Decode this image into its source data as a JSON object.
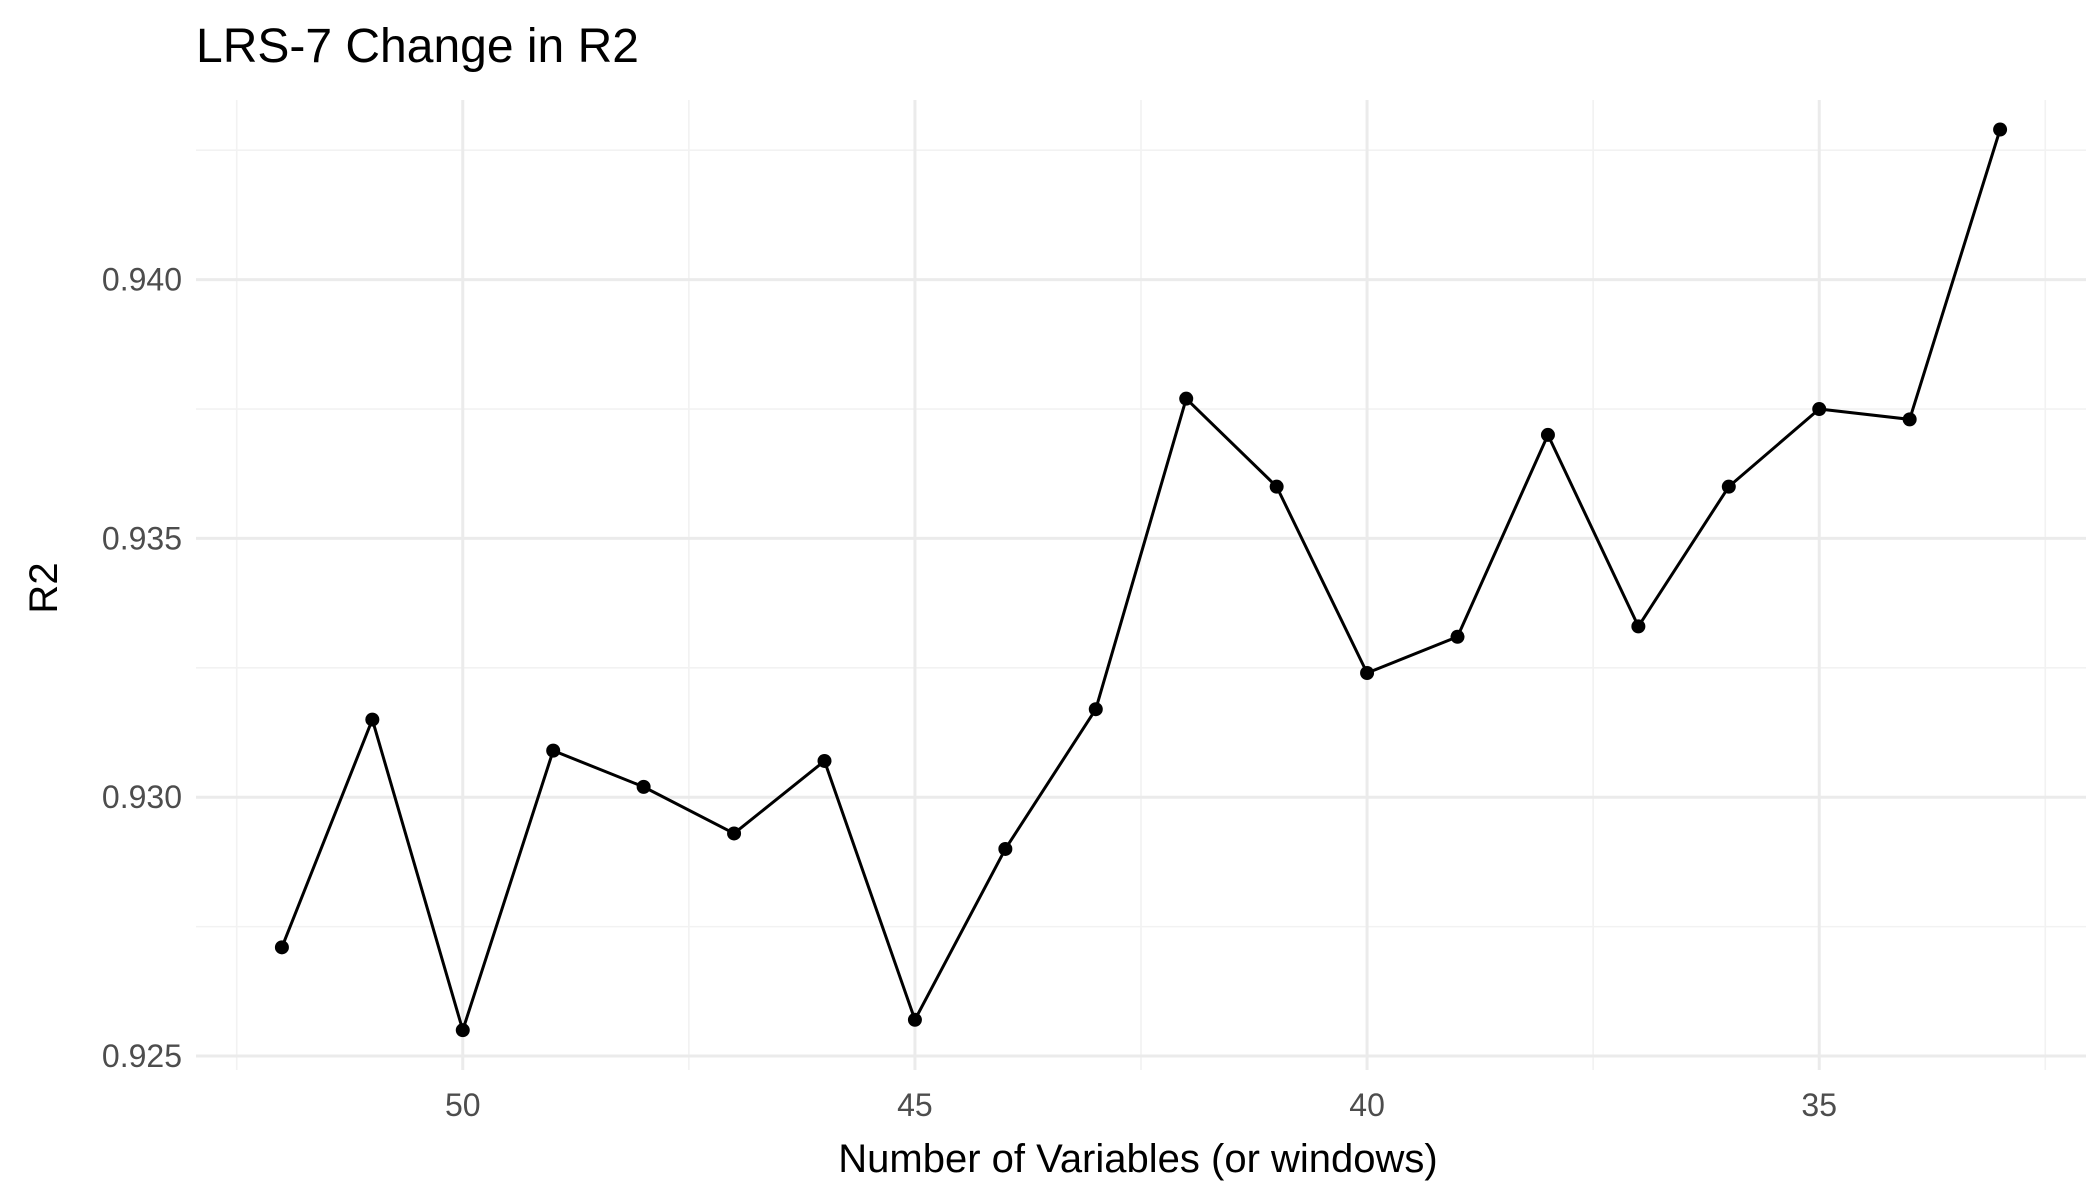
{
  "chart_data": {
    "type": "line",
    "title": "LRS-7 Change in R2",
    "xlabel": "Number of Variables (or windows)",
    "ylabel": "R2",
    "x_reversed": true,
    "xlim": [
      52.95,
      32.05
    ],
    "ylim": [
      0.92473,
      0.94347
    ],
    "x_ticks": [
      50,
      45,
      40,
      35
    ],
    "x_minor_ticks": [
      52.5,
      47.5,
      42.5,
      37.5,
      32.5
    ],
    "y_ticks": [
      0.925,
      0.93,
      0.935,
      0.94
    ],
    "y_tick_labels": [
      "0.925",
      "0.930",
      "0.935",
      "0.940"
    ],
    "y_minor_ticks": [
      0.9275,
      0.9325,
      0.9375,
      0.9425
    ],
    "grid": true,
    "legend": "none",
    "colors": {
      "line": "#000000",
      "points": "#000000",
      "grid": "#ebebeb"
    },
    "series": [
      {
        "x": [
          52,
          51,
          50,
          49,
          48,
          47,
          46,
          45,
          44,
          43,
          42,
          41,
          40,
          39,
          38,
          37,
          36,
          35,
          34,
          33
        ],
        "y": [
          0.9271,
          0.9315,
          0.9255,
          0.9309,
          0.9302,
          0.9293,
          0.9307,
          0.9257,
          0.929,
          0.9317,
          0.9377,
          0.936,
          0.9324,
          0.9331,
          0.937,
          0.9333,
          0.936,
          0.9375,
          0.9373,
          0.9429
        ]
      }
    ]
  }
}
